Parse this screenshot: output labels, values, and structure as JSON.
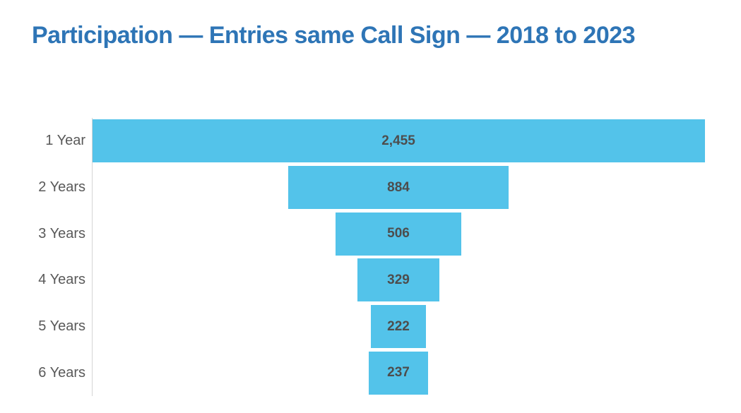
{
  "chart_data": {
    "type": "bar",
    "subtype": "funnel-centered-horizontal",
    "title": "Participation — Entries same Call Sign — 2018 to 2023",
    "categories": [
      "1 Year",
      "2 Years",
      "3 Years",
      "4 Years",
      "5 Years",
      "6 Years"
    ],
    "values": [
      2455,
      884,
      506,
      329,
      222,
      237
    ],
    "value_labels": [
      "2,455",
      "884",
      "506",
      "329",
      "222",
      "237"
    ],
    "xlabel": "",
    "ylabel": "",
    "xlim": [
      0,
      2455
    ],
    "bars_centered": true,
    "grid": false,
    "legend": false,
    "colors": {
      "bar": "#53C3EA",
      "title": "#2E75B6",
      "category_label": "#595959",
      "value_label": "#4D4D4D",
      "axis_line": "#D4D4D4",
      "background": "#FFFFFF"
    }
  }
}
